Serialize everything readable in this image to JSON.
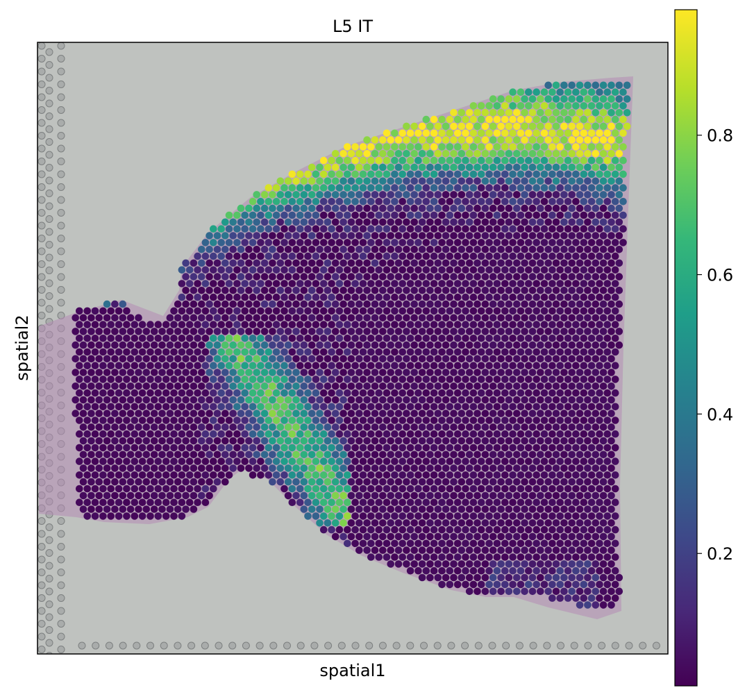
{
  "chart_data": {
    "type": "scatter",
    "title": "L5 IT",
    "xlabel": "spatial1",
    "ylabel": "spatial2",
    "colormap": "viridis",
    "colorbar": {
      "range": [
        0.01,
        0.98
      ],
      "ticks": [
        0.2,
        0.4,
        0.6,
        0.8
      ],
      "tick_labels": [
        "0.2",
        "0.4",
        "0.6",
        "0.8"
      ]
    },
    "x_ticks": [],
    "y_ticks": [],
    "background": "H&E tissue section image",
    "spot_summary": "Hexagonal grid of Visium spots over a brain tissue section; high values (~0.8-0.98) form a curved cortical band from the upper-left to the upper-right, low values (~0.02) dominate the left and lower-right regions."
  },
  "colors": {
    "viridis": [
      "#440154",
      "#482878",
      "#3e4989",
      "#31688e",
      "#26828e",
      "#1f9e89",
      "#35b779",
      "#6ece58",
      "#b5de2b",
      "#fde725"
    ],
    "background_tissue": "#bfc2bf",
    "tissue_stain": "#b48cb4"
  }
}
